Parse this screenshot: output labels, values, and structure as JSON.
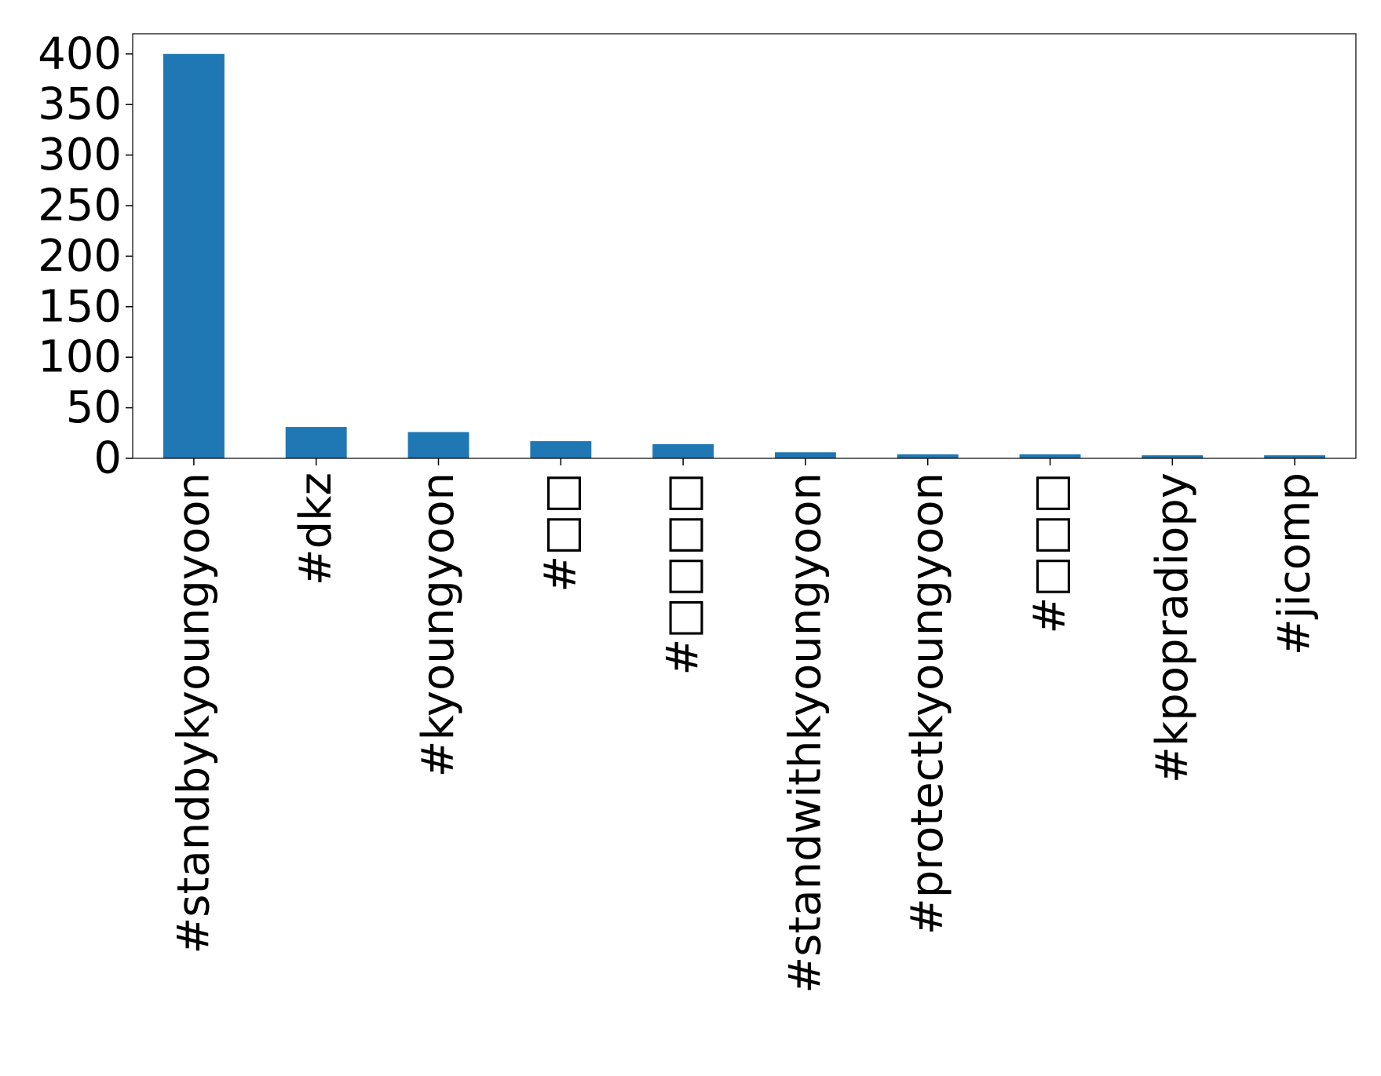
{
  "chart_data": {
    "type": "bar",
    "categories": [
      "#standbykyoungyoon",
      "#dkz",
      "#kyoungyoon",
      "#□□",
      "#□□□□",
      "#standwithkyoungyoon",
      "#protectkyoungyoon",
      "#□□□",
      "#kpopradiopy",
      "#jicomp"
    ],
    "values": [
      400,
      31,
      26,
      17,
      14,
      6,
      4,
      4,
      3,
      3
    ],
    "color": "#1f77b4",
    "ylim": [
      0,
      420
    ],
    "yticks": [
      0,
      50,
      100,
      150,
      200,
      250,
      300,
      350,
      400
    ],
    "grid": false
  }
}
